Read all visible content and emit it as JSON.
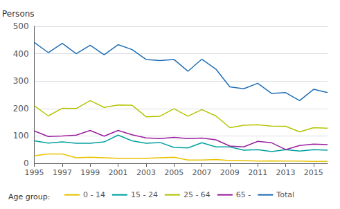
{
  "chart_data": {
    "type": "line",
    "ylabel": "Persons",
    "legend_title": "Age group:",
    "x": [
      1995,
      1996,
      1997,
      1998,
      1999,
      2000,
      2001,
      2002,
      2003,
      2004,
      2005,
      2006,
      2007,
      2008,
      2009,
      2010,
      2011,
      2012,
      2013,
      2014,
      2015,
      2016
    ],
    "series": [
      {
        "name": "0 - 14",
        "color": "#e8c200",
        "values": [
          28,
          34,
          34,
          20,
          22,
          20,
          18,
          18,
          18,
          20,
          22,
          12,
          12,
          14,
          10,
          10,
          8,
          9,
          8,
          8,
          7,
          7
        ]
      },
      {
        "name": "15 - 24",
        "color": "#00a0a0",
        "values": [
          82,
          74,
          78,
          73,
          73,
          78,
          103,
          82,
          73,
          76,
          58,
          56,
          75,
          60,
          60,
          48,
          50,
          43,
          50,
          45,
          50,
          48
        ]
      },
      {
        "name": "25 - 64",
        "color": "#b5c400",
        "values": [
          210,
          173,
          201,
          200,
          229,
          204,
          213,
          212,
          170,
          172,
          199,
          172,
          196,
          173,
          130,
          139,
          141,
          136,
          135,
          115,
          130,
          128
        ]
      },
      {
        "name": "65 -",
        "color": "#9b1fa0",
        "values": [
          118,
          98,
          100,
          103,
          120,
          99,
          120,
          104,
          93,
          90,
          95,
          90,
          92,
          86,
          63,
          60,
          80,
          75,
          50,
          65,
          70,
          68
        ]
      },
      {
        "name": "Total",
        "color": "#1f6eb5",
        "values": [
          441,
          404,
          438,
          400,
          431,
          396,
          433,
          415,
          379,
          375,
          379,
          336,
          380,
          344,
          279,
          272,
          292,
          255,
          258,
          229,
          270,
          258
        ]
      }
    ],
    "xlim": [
      1995,
      2016
    ],
    "xticks": [
      1995,
      1997,
      1999,
      2001,
      2003,
      2005,
      2007,
      2009,
      2011,
      2013,
      2015
    ],
    "ylim": [
      0,
      500
    ],
    "yticks": [
      0,
      100,
      200,
      300,
      400,
      500
    ],
    "grid": true,
    "legend": "bottom"
  }
}
